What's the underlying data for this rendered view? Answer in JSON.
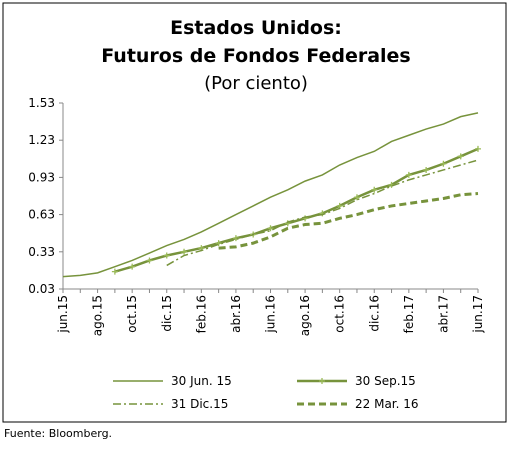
{
  "chart_data": {
    "type": "line",
    "title": [
      "Estados Unidos:",
      "Futuros de Fondos Federales"
    ],
    "subtitle": "(Por ciento)",
    "source": "Fuente: Bloomberg.",
    "categories": [
      "jun.15",
      null,
      "ago.15",
      null,
      "oct.15",
      null,
      "dic.15",
      null,
      "feb.16",
      null,
      "abr.16",
      null,
      "jun.16",
      null,
      "ago.16",
      null,
      "oct.16",
      null,
      "dic.16",
      null,
      "feb.17",
      null,
      "abr.17",
      null,
      "jun.17"
    ],
    "ylim": [
      0.03,
      1.53
    ],
    "yticks": [
      0.03,
      0.33,
      0.63,
      0.93,
      1.23,
      1.53
    ],
    "grid": false,
    "legend": "bottom",
    "series": [
      {
        "name": "30 Jun. 15",
        "color": "#77933c",
        "width": 1.5,
        "dash": "solid",
        "values": [
          0.13,
          0.14,
          0.16,
          0.21,
          0.26,
          0.32,
          0.38,
          0.43,
          0.49,
          0.56,
          0.63,
          0.7,
          0.77,
          0.83,
          0.9,
          0.95,
          1.03,
          1.09,
          1.14,
          1.22,
          1.27,
          1.32,
          1.36,
          1.42,
          1.45
        ]
      },
      {
        "name": "30 Sep.15",
        "color": "#77933c",
        "width": 2.5,
        "dash": "solid",
        "marker": "+",
        "values": [
          null,
          null,
          null,
          0.17,
          0.21,
          0.26,
          0.3,
          0.33,
          0.36,
          0.4,
          0.44,
          0.47,
          0.52,
          0.56,
          0.6,
          0.64,
          0.7,
          0.77,
          0.83,
          0.87,
          0.95,
          0.99,
          1.04,
          1.1,
          1.16
        ]
      },
      {
        "name": "31 Dic.15",
        "color": "#77933c",
        "width": 1.5,
        "dash": "dashdot",
        "values": [
          null,
          null,
          null,
          null,
          null,
          null,
          0.22,
          0.3,
          0.34,
          0.39,
          0.43,
          0.47,
          0.5,
          0.57,
          0.61,
          0.63,
          0.68,
          0.75,
          0.8,
          0.86,
          0.91,
          0.95,
          0.99,
          1.03,
          1.07
        ]
      },
      {
        "name": "22 Mar. 16",
        "color": "#77933c",
        "width": 3,
        "dash": "dash",
        "values": [
          null,
          null,
          null,
          null,
          null,
          null,
          null,
          null,
          null,
          0.36,
          0.37,
          0.4,
          0.45,
          0.52,
          0.55,
          0.56,
          0.6,
          0.63,
          0.67,
          0.7,
          0.72,
          0.74,
          0.76,
          0.79,
          0.8
        ]
      }
    ]
  }
}
